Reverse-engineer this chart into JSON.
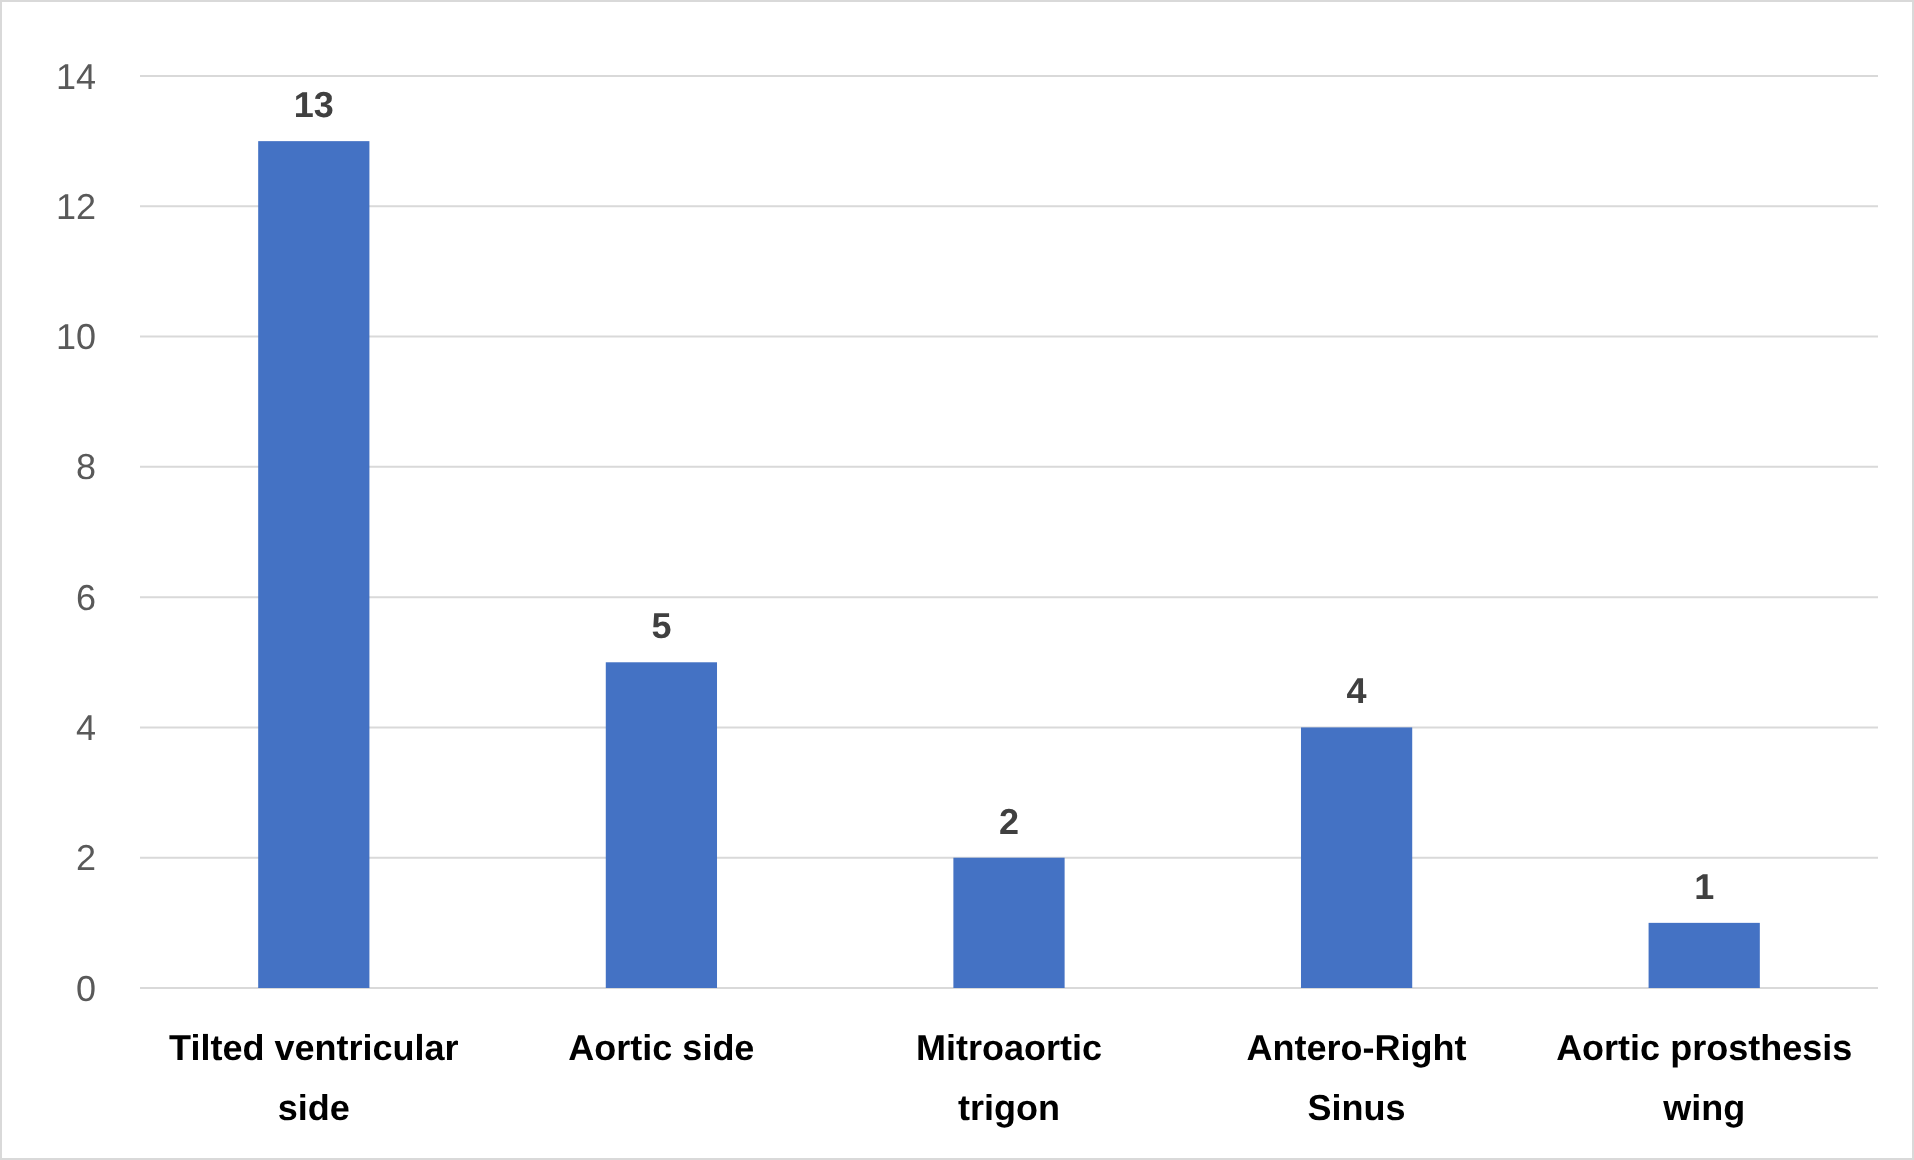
{
  "chart_data": {
    "type": "bar",
    "categories": [
      "Tilted ventricular side",
      "Aortic side",
      "Mitroaortic trigon",
      "Antero-Right Sinus",
      "Aortic prosthesis wing"
    ],
    "values": [
      13,
      5,
      2,
      4,
      1
    ],
    "color": "#4472c4",
    "ylim": [
      0,
      14
    ],
    "yticks": [
      0,
      2,
      4,
      6,
      8,
      10,
      12,
      14
    ],
    "grid": "y",
    "data_labels": true
  }
}
